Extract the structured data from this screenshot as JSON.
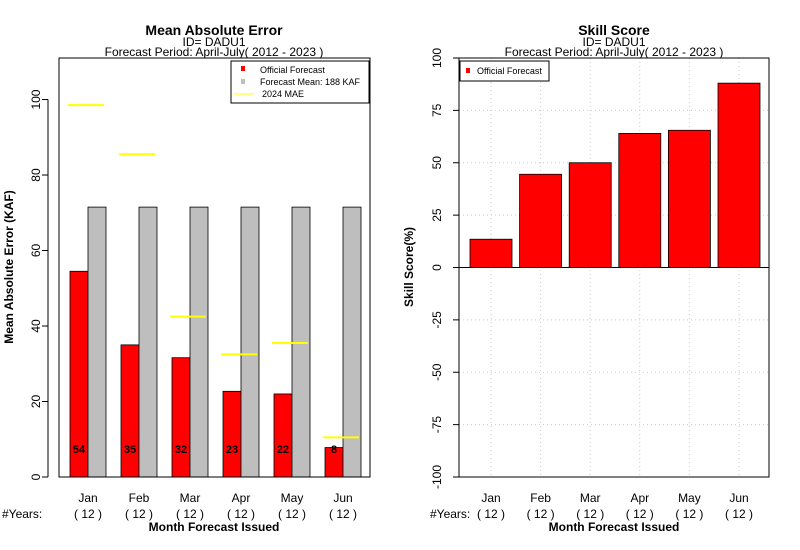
{
  "chart_data": [
    {
      "type": "bar",
      "title": "Mean Absolute Error",
      "subtitle1": "ID= DADU1",
      "subtitle2": "Forecast Period: April-July( 2012 - 2023 )",
      "xlabel": "Month Forecast Issued",
      "ylabel": "Mean Absolute Error (KAF)",
      "ylim": [
        0,
        111
      ],
      "yticks": [
        0,
        20,
        40,
        60,
        80,
        100
      ],
      "categories": [
        "Jan",
        "Feb",
        "Mar",
        "Apr",
        "May",
        "Jun"
      ],
      "years_label": "#Years:",
      "years": [
        "( 12 )",
        "( 12 )",
        "( 12 )",
        "( 12 )",
        "( 12 )",
        "( 12 )"
      ],
      "series": [
        {
          "name": "Official Forecast",
          "color": "#ff0000",
          "values": [
            54.5,
            35,
            31.6,
            22.7,
            22,
            7.8
          ]
        },
        {
          "name": "Forecast Mean: 188 KAF",
          "color": "#bebebe",
          "values": [
            71.5,
            71.5,
            71.5,
            71.5,
            71.5,
            71.5
          ]
        },
        {
          "name": "2024  MAE",
          "color": "#ffff00",
          "values": [
            98.5,
            85.5,
            42.5,
            32.5,
            35.5,
            10.5
          ]
        }
      ],
      "bar_labels": [
        "54",
        "35",
        "32",
        "23",
        "22",
        "8"
      ],
      "legend_position": "top-right"
    },
    {
      "type": "bar",
      "title": "Skill Score",
      "subtitle1": "ID= DADU1",
      "subtitle2": "Forecast Period: April-July( 2012 - 2023 )",
      "xlabel": "Month Forecast Issued",
      "ylabel": "Skill Score(%)",
      "ylim": [
        -100,
        100
      ],
      "yticks": [
        -100,
        -75,
        -50,
        -25,
        0,
        25,
        50,
        75,
        100
      ],
      "categories": [
        "Jan",
        "Feb",
        "Mar",
        "Apr",
        "May",
        "Jun"
      ],
      "years_label": "#Years:",
      "years": [
        "( 12 )",
        "( 12 )",
        "( 12 )",
        "( 12 )",
        "( 12 )",
        "( 12 )"
      ],
      "series": [
        {
          "name": "Official Forecast",
          "color": "#ff0000",
          "values": [
            13.5,
            44.5,
            50,
            64,
            65.5,
            88
          ]
        }
      ],
      "grid": true,
      "legend_position": "top-left"
    }
  ]
}
